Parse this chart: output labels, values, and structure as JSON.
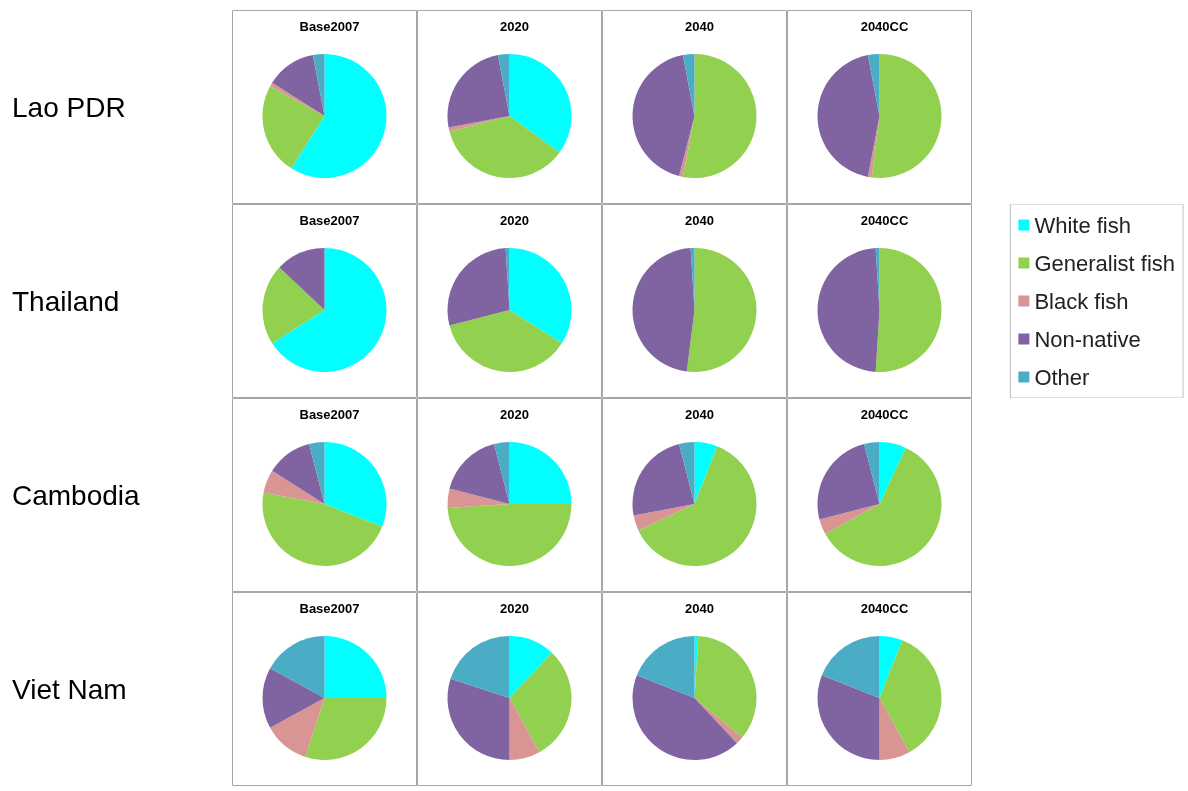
{
  "chart_data": [
    {
      "type": "pie",
      "title": "Base2007",
      "ylabel": "Lao PDR",
      "categories": [
        null,
        null,
        null,
        null,
        null
      ],
      "values": [
        59,
        24,
        1,
        13,
        3
      ],
      "colors": [
        "#00ffff",
        "#92d050",
        "#d99594",
        "#8064a2",
        "#4bacc6"
      ]
    },
    {
      "type": "pie",
      "title": "2020",
      "categories": [
        null,
        null,
        null,
        null,
        null
      ],
      "values": [
        35,
        36,
        1,
        25,
        3
      ],
      "colors": [
        "#00ffff",
        "#92d050",
        "#d99594",
        "#8064a2",
        "#4bacc6"
      ]
    },
    {
      "type": "pie",
      "title": "2040",
      "categories": [
        null,
        null,
        null,
        null,
        null
      ],
      "values": [
        0,
        53,
        1,
        43,
        3
      ],
      "colors": [
        "#00ffff",
        "#92d050",
        "#d99594",
        "#8064a2",
        "#4bacc6"
      ]
    },
    {
      "type": "pie",
      "title": "2040CC",
      "categories": [
        null,
        null,
        null,
        null,
        null
      ],
      "values": [
        0,
        52,
        1,
        44,
        3
      ],
      "colors": [
        "#00ffff",
        "#92d050",
        "#d99594",
        "#8064a2",
        "#4bacc6"
      ]
    },
    {
      "type": "pie",
      "title": "Base2007",
      "ylabel": "Thailand",
      "categories": [
        null,
        null,
        null,
        null,
        null
      ],
      "values": [
        66,
        21,
        0,
        13,
        0
      ],
      "colors": [
        "#00ffff",
        "#92d050",
        "#d99594",
        "#8064a2",
        "#4bacc6"
      ]
    },
    {
      "type": "pie",
      "title": "2020",
      "categories": [
        null,
        null,
        null,
        null,
        null
      ],
      "values": [
        34,
        37,
        0,
        28,
        1
      ],
      "colors": [
        "#00ffff",
        "#92d050",
        "#d99594",
        "#8064a2",
        "#4bacc6"
      ]
    },
    {
      "type": "pie",
      "title": "2040",
      "categories": [
        null,
        null,
        null,
        null,
        null
      ],
      "values": [
        0,
        52,
        0,
        47,
        1
      ],
      "colors": [
        "#00ffff",
        "#92d050",
        "#d99594",
        "#8064a2",
        "#4bacc6"
      ]
    },
    {
      "type": "pie",
      "title": "2040CC",
      "legend": "right",
      "categories": [
        "White fish",
        "Generalist fish",
        "Black fish",
        "Non-native",
        "Other"
      ],
      "values": [
        0,
        51,
        0,
        48,
        1
      ],
      "colors": [
        "#00ffff",
        "#92d050",
        "#d99594",
        "#8064a2",
        "#4bacc6"
      ]
    },
    {
      "type": "pie",
      "title": "Base2007",
      "ylabel": "Cambodia",
      "categories": [
        null,
        null,
        null,
        null,
        null
      ],
      "values": [
        31,
        47,
        6,
        12,
        4
      ],
      "colors": [
        "#00ffff",
        "#92d050",
        "#d99594",
        "#8064a2",
        "#4bacc6"
      ]
    },
    {
      "type": "pie",
      "title": "2020",
      "categories": [
        null,
        null,
        null,
        null,
        null
      ],
      "values": [
        25,
        49,
        5,
        17,
        4
      ],
      "colors": [
        "#00ffff",
        "#92d050",
        "#d99594",
        "#8064a2",
        "#4bacc6"
      ]
    },
    {
      "type": "pie",
      "title": "2040",
      "categories": [
        null,
        null,
        null,
        null,
        null
      ],
      "values": [
        6,
        62,
        4,
        24,
        4
      ],
      "colors": [
        "#00ffff",
        "#92d050",
        "#d99594",
        "#8064a2",
        "#4bacc6"
      ]
    },
    {
      "type": "pie",
      "title": "2040CC",
      "categories": [
        null,
        null,
        null,
        null,
        null
      ],
      "values": [
        7,
        60,
        4,
        25,
        4
      ],
      "colors": [
        "#00ffff",
        "#92d050",
        "#d99594",
        "#8064a2",
        "#4bacc6"
      ]
    },
    {
      "type": "pie",
      "title": "Base2007",
      "ylabel": "Viet Nam",
      "categories": [
        null,
        null,
        null,
        null,
        null
      ],
      "values": [
        25,
        30,
        12,
        16,
        17
      ],
      "colors": [
        "#00ffff",
        "#92d050",
        "#d99594",
        "#8064a2",
        "#4bacc6"
      ]
    },
    {
      "type": "pie",
      "title": "2020",
      "categories": [
        null,
        null,
        null,
        null,
        null
      ],
      "values": [
        12,
        30,
        8,
        30,
        20
      ],
      "colors": [
        "#00ffff",
        "#92d050",
        "#d99594",
        "#8064a2",
        "#4bacc6"
      ]
    },
    {
      "type": "pie",
      "title": "2040",
      "categories": [
        null,
        null,
        null,
        null,
        null
      ],
      "values": [
        1,
        35,
        2,
        43,
        19
      ],
      "colors": [
        "#00ffff",
        "#92d050",
        "#d99594",
        "#8064a2",
        "#4bacc6"
      ]
    },
    {
      "type": "pie",
      "title": "2040CC",
      "categories": [
        null,
        null,
        null,
        null,
        null
      ],
      "values": [
        6,
        36,
        8,
        31,
        19
      ],
      "colors": [
        "#00ffff",
        "#92d050",
        "#d99594",
        "#8064a2",
        "#4bacc6"
      ]
    }
  ]
}
